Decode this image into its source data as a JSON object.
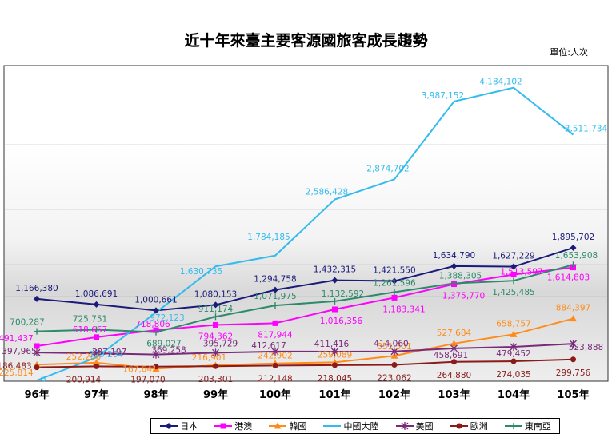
{
  "chart_data": {
    "type": "line",
    "title": "近十年來臺主要客源國旅客成長趨勢",
    "unit": "單位:人次",
    "categories": [
      "96年",
      "97年",
      "98年",
      "99年",
      "100年",
      "101年",
      "102年",
      "103年",
      "104年",
      "105年"
    ],
    "ylim": [
      0,
      4500000
    ],
    "grid": false,
    "legend_position": "bottom",
    "series": [
      {
        "name": "日本",
        "color": "#1a1a7a",
        "marker": "diamond",
        "values": [
          1166380,
          1086691,
          1000661,
          1080153,
          1294758,
          1432315,
          1421550,
          1634790,
          1627229,
          1895702
        ],
        "labels": [
          "1,166,380",
          "1,086,691",
          "1,000,661",
          "1,080,153",
          "1,294,758",
          "1,432,315",
          "1,421,550",
          "1,634,790",
          "1,627,229",
          "1,895,702"
        ]
      },
      {
        "name": "港澳",
        "color": "#ff00ff",
        "marker": "square",
        "values": [
          491437,
          618667,
          718806,
          794362,
          817944,
          1016356,
          1183341,
          1375770,
          1513597,
          1614803
        ],
        "labels": [
          "491,437",
          "618,667",
          "718,806",
          "794,362",
          "817,944",
          "1,016,356",
          "1,183,341",
          "1,375,770",
          "1,513,597",
          "1,614,803"
        ]
      },
      {
        "name": "韓國",
        "color": "#ff8c1a",
        "marker": "triangle",
        "values": [
          225814,
          252266,
          167641,
          216901,
          242902,
          259089,
          351301,
          527684,
          658757,
          884397
        ],
        "labels": [
          "225,814",
          "252,266",
          "167,641",
          "216,901",
          "242,902",
          "259,089",
          "351,301",
          "527,684",
          "658,757",
          "884,397"
        ]
      },
      {
        "name": "中國大陸",
        "color": "#33bbee",
        "marker": "none",
        "values": [
          0,
          329204,
          972123,
          1630735,
          1784185,
          2586428,
          2874702,
          3987152,
          4184102,
          3511734
        ],
        "labels": [
          "0",
          "329,204",
          "972,123",
          "1,630,735",
          "1,784,185",
          "2,586,428",
          "2,874,702",
          "3,987,152",
          "4,184,102",
          "3,511,734"
        ]
      },
      {
        "name": "美國",
        "color": "#7a2a7a",
        "marker": "star",
        "values": [
          397965,
          387197,
          369258,
          395729,
          412617,
          411416,
          414060,
          458691,
          479452,
          523888
        ],
        "labels": [
          "397,965",
          "387,197",
          "369,258",
          "395,729",
          "412,617",
          "411,416",
          "414,060",
          "458,691",
          "479,452",
          "523,888"
        ]
      },
      {
        "name": "歐洲",
        "color": "#8b1a1a",
        "marker": "circle",
        "values": [
          186483,
          200914,
          197070,
          203301,
          212148,
          218045,
          223062,
          264880,
          274035,
          299756
        ],
        "labels": [
          "186,483",
          "200,914",
          "197,070",
          "203,301",
          "212,148",
          "218,045",
          "223,062",
          "264,880",
          "274,035",
          "299,756"
        ]
      },
      {
        "name": "東南亞",
        "color": "#2a8a6a",
        "marker": "plus",
        "values": [
          700287,
          725751,
          689027,
          911174,
          1071975,
          1132592,
          1261596,
          1388305,
          1425485,
          1653908
        ],
        "labels": [
          "700,287",
          "725,751",
          "689,027",
          "911,174",
          "1,071,975",
          "1,132,592",
          "1,261,596",
          "1,388,305",
          "1,425,485",
          "1,653,908"
        ]
      }
    ]
  }
}
